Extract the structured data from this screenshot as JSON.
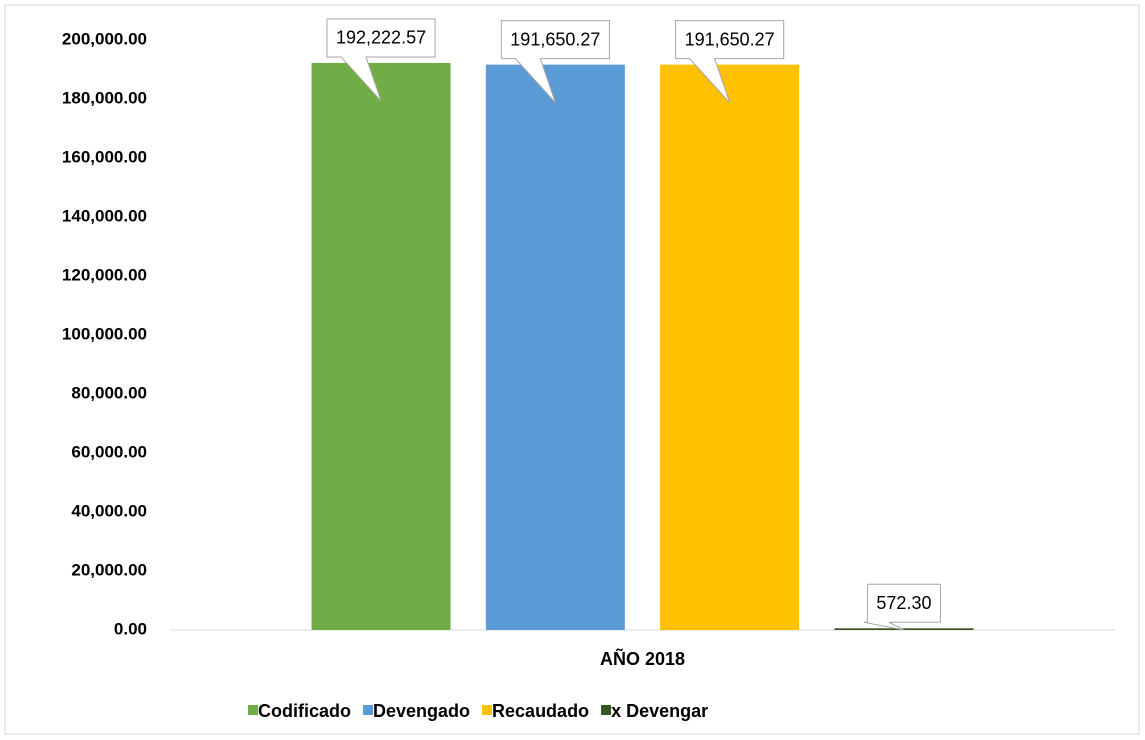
{
  "chart_data": {
    "type": "bar",
    "categories": [
      "AÑO 2018"
    ],
    "series": [
      {
        "name": "Codificado",
        "color": "#70ad47",
        "values": [
          192222.57
        ],
        "value_labels": [
          "192,222.57"
        ]
      },
      {
        "name": "Devengado",
        "color": "#5b9bd5",
        "values": [
          191650.27
        ],
        "value_labels": [
          "191,650.27"
        ]
      },
      {
        "name": "Recaudado",
        "color": "#ffc000",
        "values": [
          191650.27
        ],
        "value_labels": [
          "191,650.27"
        ]
      },
      {
        "name": "x Devengar",
        "color": "#375623",
        "values": [
          572.3
        ],
        "value_labels": [
          "572.30"
        ]
      }
    ],
    "ylim": [
      0,
      200000
    ],
    "yticks": [
      {
        "value": 0,
        "label": "0.00"
      },
      {
        "value": 20000,
        "label": "20,000.00"
      },
      {
        "value": 40000,
        "label": "40,000.00"
      },
      {
        "value": 60000,
        "label": "60,000.00"
      },
      {
        "value": 80000,
        "label": "80,000.00"
      },
      {
        "value": 100000,
        "label": "100,000.00"
      },
      {
        "value": 120000,
        "label": "120,000.00"
      },
      {
        "value": 140000,
        "label": "140,000.00"
      },
      {
        "value": 160000,
        "label": "160,000.00"
      },
      {
        "value": 180000,
        "label": "180,000.00"
      },
      {
        "value": 200000,
        "label": "200,000.00"
      }
    ],
    "grid": false,
    "legend": "bottom"
  }
}
